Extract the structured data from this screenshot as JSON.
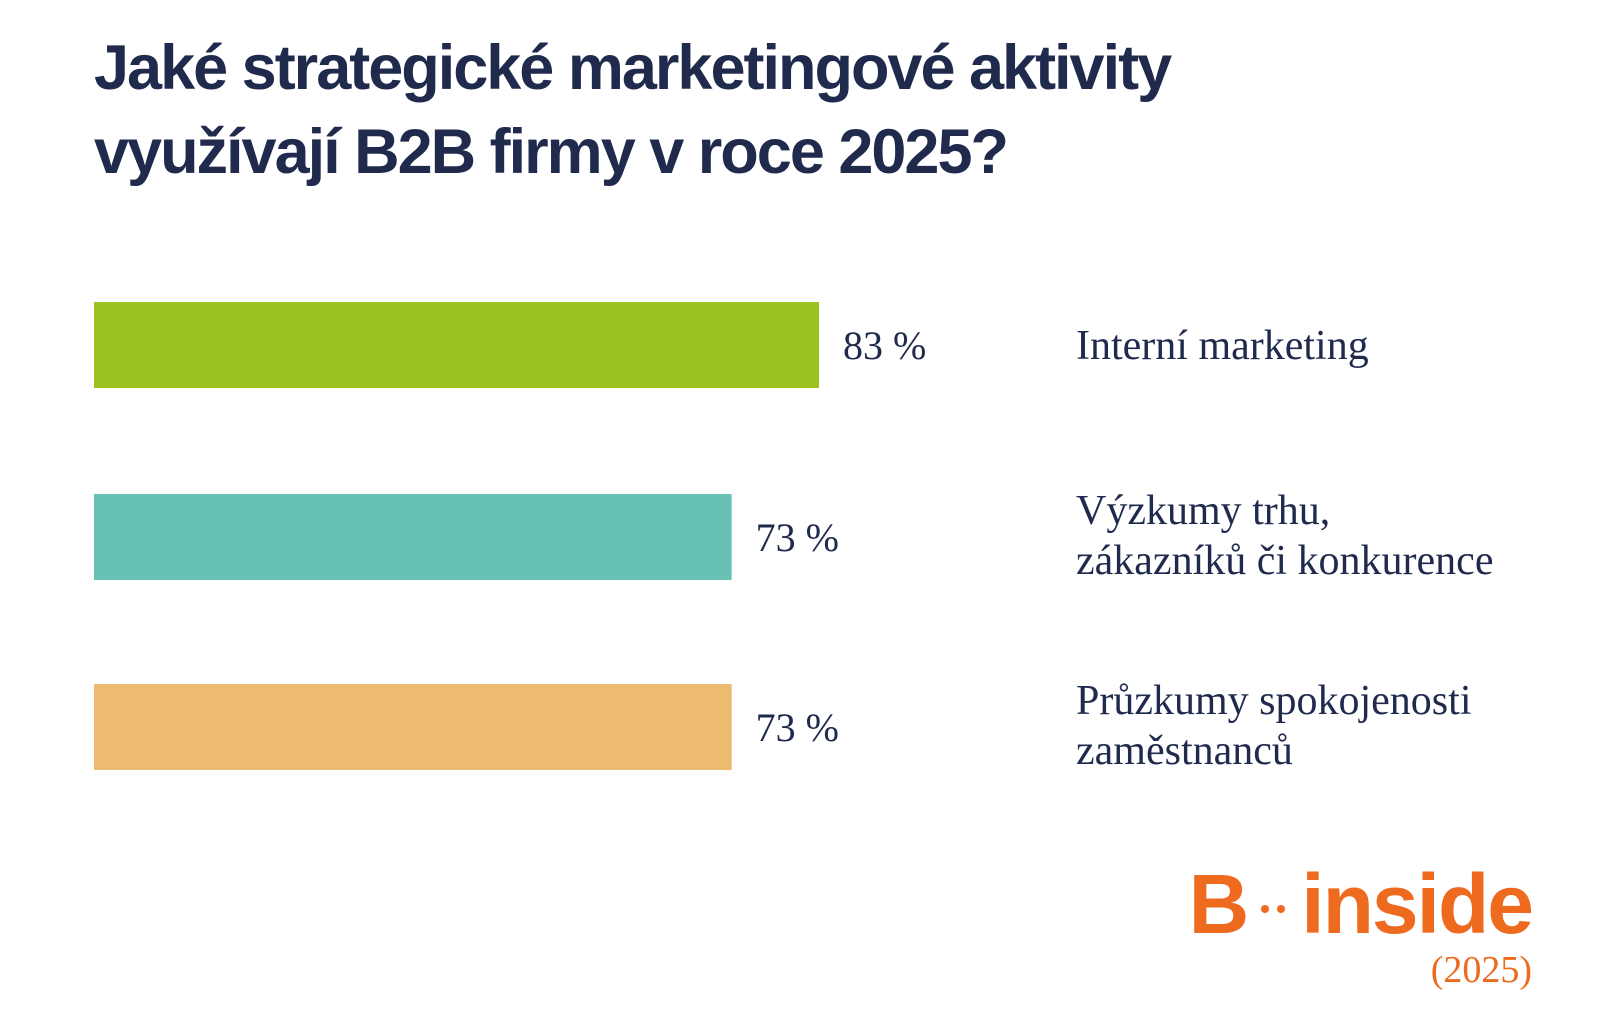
{
  "title_lines": [
    "Jaké strategické marketingové aktivity",
    "využívají B2B firmy v roce 2025?"
  ],
  "chart_data": {
    "type": "bar",
    "orientation": "horizontal",
    "title": "Jaké strategické marketingové aktivity využívají B2B firmy v roce 2025?",
    "categories": [
      [
        "Interní marketing"
      ],
      [
        "Výzkumy trhu,",
        "zákazníků či konkurence"
      ],
      [
        "Průzkumy spokojenosti",
        "zaměstnanců"
      ]
    ],
    "values": [
      83,
      73,
      73
    ],
    "value_labels": [
      "83 %",
      "73 %",
      "73 %"
    ],
    "colors": [
      "#9bc21f",
      "#67c1b4",
      "#edbb70"
    ],
    "xlim": [
      0,
      100
    ],
    "grid": false,
    "legend": "none"
  },
  "brand": {
    "letter": "B",
    "word": "inside",
    "year": "(2025)",
    "color": "#ee6a1f"
  }
}
